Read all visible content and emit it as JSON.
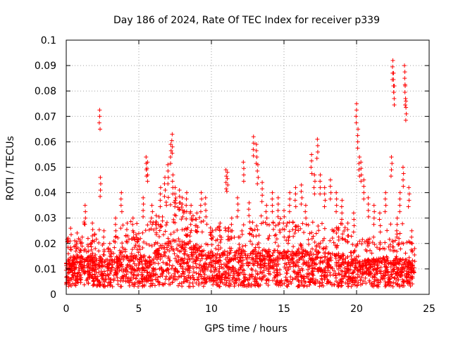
{
  "chart_data": {
    "type": "scatter",
    "title": "Day 186 of 2024, Rate Of TEC Index for receiver p339",
    "xlabel": "GPS time / hours",
    "ylabel": "ROTI / TECUs",
    "xlim": [
      0,
      25
    ],
    "ylim": [
      0,
      0.1
    ],
    "x_ticks": [
      0,
      5,
      10,
      15,
      20,
      25
    ],
    "x_tick_labels": [
      "0",
      "5",
      "10",
      "15",
      "20",
      "25"
    ],
    "y_ticks": [
      0,
      0.01,
      0.02,
      0.03,
      0.04,
      0.05,
      0.06,
      0.07,
      0.08,
      0.09,
      0.1
    ],
    "y_tick_labels": [
      "0",
      "0.01",
      "0.02",
      "0.03",
      "0.04",
      "0.05",
      "0.06",
      "0.07",
      "0.08",
      "0.09",
      "0.1"
    ],
    "grid": true,
    "marker": "+",
    "color": "#ff0000",
    "series": [
      {
        "name": "ROTI",
        "x": [
          0.0,
          0.15,
          0.3,
          0.5,
          0.7,
          1.0,
          1.3,
          1.5,
          1.8,
          2.0,
          2.3,
          2.35,
          2.6,
          3.0,
          3.4,
          3.8,
          4.2,
          4.6,
          5.0,
          5.3,
          5.5,
          5.6,
          5.9,
          6.2,
          6.5,
          6.8,
          7.0,
          7.2,
          7.3,
          7.35,
          7.5,
          7.8,
          8.0,
          8.3,
          8.6,
          9.0,
          9.3,
          9.6,
          10.0,
          10.3,
          10.6,
          11.0,
          11.1,
          11.4,
          11.8,
          12.2,
          12.6,
          12.9,
          13.1,
          13.2,
          13.5,
          13.8,
          14.2,
          14.6,
          15.0,
          15.4,
          15.8,
          16.2,
          16.5,
          16.9,
          17.1,
          17.3,
          17.5,
          17.8,
          18.2,
          18.6,
          19.0,
          19.4,
          19.8,
          20.0,
          20.1,
          20.2,
          20.3,
          20.5,
          20.8,
          21.2,
          21.6,
          22.0,
          22.4,
          22.5,
          22.55,
          22.6,
          22.8,
          23.0,
          23.2,
          23.3,
          23.35,
          23.4,
          23.6,
          23.8,
          24.0
        ],
        "y": [
          0.012,
          0.021,
          0.026,
          0.015,
          0.018,
          0.02,
          0.035,
          0.022,
          0.028,
          0.018,
          0.0725,
          0.046,
          0.025,
          0.02,
          0.03,
          0.04,
          0.028,
          0.03,
          0.024,
          0.038,
          0.054,
          0.052,
          0.035,
          0.031,
          0.042,
          0.046,
          0.051,
          0.059,
          0.063,
          0.047,
          0.042,
          0.041,
          0.038,
          0.04,
          0.035,
          0.032,
          0.04,
          0.038,
          0.022,
          0.018,
          0.028,
          0.049,
          0.048,
          0.03,
          0.038,
          0.052,
          0.036,
          0.062,
          0.059,
          0.051,
          0.044,
          0.035,
          0.04,
          0.038,
          0.033,
          0.04,
          0.042,
          0.043,
          0.035,
          0.055,
          0.047,
          0.061,
          0.047,
          0.042,
          0.045,
          0.04,
          0.037,
          0.028,
          0.032,
          0.075,
          0.065,
          0.054,
          0.052,
          0.045,
          0.038,
          0.035,
          0.032,
          0.04,
          0.054,
          0.092,
          0.087,
          0.082,
          0.03,
          0.04,
          0.05,
          0.09,
          0.082,
          0.076,
          0.042,
          0.025,
          0.018
        ]
      }
    ],
    "cloud": {
      "baseline": [
        [
          0,
          0.009
        ],
        [
          3,
          0.009
        ],
        [
          6,
          0.01
        ],
        [
          7.2,
          0.016
        ],
        [
          8,
          0.014
        ],
        [
          10,
          0.01
        ],
        [
          13,
          0.011
        ],
        [
          17,
          0.011
        ],
        [
          19,
          0.01
        ],
        [
          20,
          0.008
        ],
        [
          22,
          0.009
        ],
        [
          24,
          0.008
        ]
      ],
      "floor": [
        [
          0,
          0.003
        ],
        [
          24,
          0.003
        ]
      ]
    }
  }
}
